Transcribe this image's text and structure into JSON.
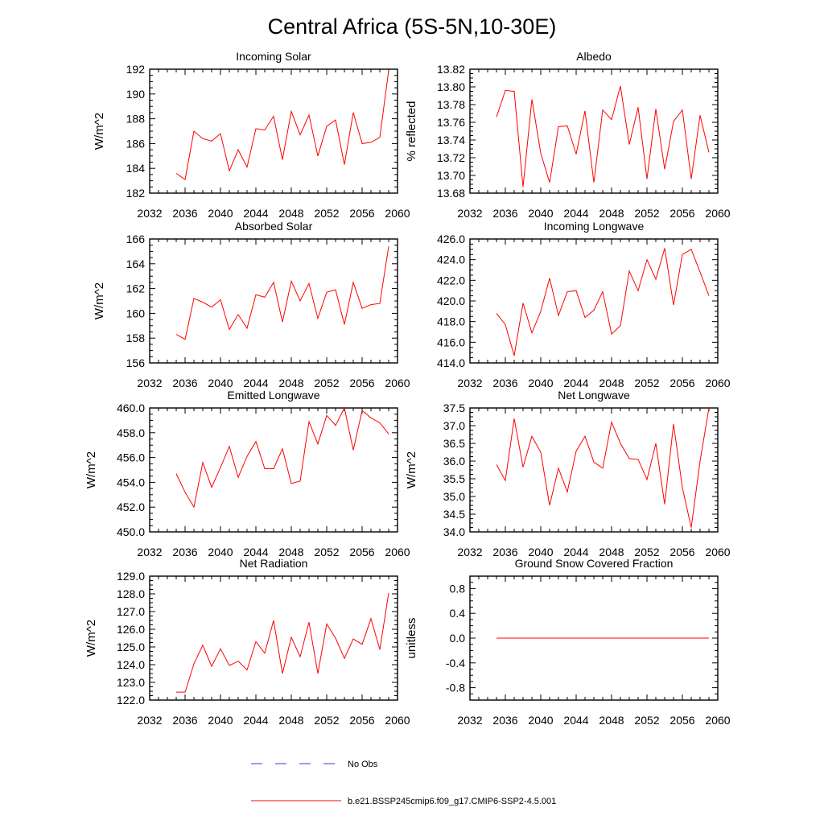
{
  "title": "Central Africa (5S-5N,10-30E)",
  "legend": {
    "obs_label": "No Obs",
    "obs_color": "#3b3bd6",
    "model_label": "b.e21.BSSP245cmip6.f09_g17.CMIP6-SSP2-4.5.001",
    "model_color": "#ff0000"
  },
  "chart_data": [
    {
      "type": "line",
      "title": "Incoming Solar",
      "ylabel": "W/m^2",
      "xlim": [
        2032,
        2060
      ],
      "xticks": [
        "2032",
        "2036",
        "2040",
        "2044",
        "2048",
        "2052",
        "2056",
        "2060"
      ],
      "ylim": [
        182,
        192
      ],
      "yticks": [
        "182",
        "184",
        "186",
        "188",
        "190",
        "192"
      ],
      "x": [
        2035,
        2036,
        2037,
        2038,
        2039,
        2040,
        2041,
        2042,
        2043,
        2044,
        2045,
        2046,
        2047,
        2048,
        2049,
        2050,
        2051,
        2052,
        2053,
        2054,
        2055,
        2056,
        2057,
        2058,
        2059
      ],
      "series": [
        {
          "values": [
            183.6,
            183.1,
            187.0,
            186.4,
            186.2,
            186.8,
            183.8,
            185.5,
            184.1,
            187.2,
            187.1,
            188.2,
            184.7,
            188.6,
            186.7,
            188.3,
            185.0,
            187.4,
            187.9,
            184.3,
            188.5,
            186.0,
            186.1,
            186.5,
            191.9
          ]
        }
      ]
    },
    {
      "type": "line",
      "title": "Albedo",
      "ylabel": "% reflected",
      "xlim": [
        2032,
        2060
      ],
      "xticks": [
        "2032",
        "2036",
        "2040",
        "2044",
        "2048",
        "2052",
        "2056",
        "2060"
      ],
      "ylim": [
        13.68,
        13.82
      ],
      "yticks": [
        "13.68",
        "13.70",
        "13.72",
        "13.74",
        "13.76",
        "13.78",
        "13.80",
        "13.82"
      ],
      "x": [
        2035,
        2036,
        2037,
        2038,
        2039,
        2040,
        2041,
        2042,
        2043,
        2044,
        2045,
        2046,
        2047,
        2048,
        2049,
        2050,
        2051,
        2052,
        2053,
        2054,
        2055,
        2056,
        2057,
        2058,
        2059
      ],
      "series": [
        {
          "values": [
            13.766,
            13.796,
            13.795,
            13.687,
            13.786,
            13.725,
            13.692,
            13.755,
            13.756,
            13.724,
            13.773,
            13.692,
            13.774,
            13.763,
            13.801,
            13.735,
            13.777,
            13.696,
            13.775,
            13.707,
            13.761,
            13.774,
            13.696,
            13.768,
            13.726
          ]
        }
      ]
    },
    {
      "type": "line",
      "title": "Absorbed Solar",
      "ylabel": "W/m^2",
      "xlim": [
        2032,
        2060
      ],
      "xticks": [
        "2032",
        "2036",
        "2040",
        "2044",
        "2048",
        "2052",
        "2056",
        "2060"
      ],
      "ylim": [
        156,
        166
      ],
      "yticks": [
        "156",
        "158",
        "160",
        "162",
        "164",
        "166"
      ],
      "x": [
        2035,
        2036,
        2037,
        2038,
        2039,
        2040,
        2041,
        2042,
        2043,
        2044,
        2045,
        2046,
        2047,
        2048,
        2049,
        2050,
        2051,
        2052,
        2053,
        2054,
        2055,
        2056,
        2057,
        2058,
        2059
      ],
      "series": [
        {
          "values": [
            158.3,
            157.9,
            161.2,
            160.9,
            160.5,
            161.1,
            158.7,
            159.9,
            158.8,
            161.5,
            161.3,
            162.5,
            159.3,
            162.6,
            161.0,
            162.4,
            159.6,
            161.7,
            161.9,
            159.1,
            162.5,
            160.4,
            160.7,
            160.8,
            165.4
          ]
        }
      ]
    },
    {
      "type": "line",
      "title": "Incoming Longwave",
      "ylabel": "",
      "xlim": [
        2032,
        2060
      ],
      "xticks": [
        "2032",
        "2036",
        "2040",
        "2044",
        "2048",
        "2052",
        "2056",
        "2060"
      ],
      "ylim": [
        414,
        426
      ],
      "yticks": [
        "414.0",
        "416.0",
        "418.0",
        "420.0",
        "422.0",
        "424.0",
        "426.0"
      ],
      "x": [
        2035,
        2036,
        2037,
        2038,
        2039,
        2040,
        2041,
        2042,
        2043,
        2044,
        2045,
        2046,
        2047,
        2048,
        2049,
        2050,
        2051,
        2052,
        2053,
        2054,
        2055,
        2056,
        2057,
        2058,
        2059
      ],
      "series": [
        {
          "values": [
            418.8,
            417.7,
            414.7,
            419.8,
            416.9,
            419.0,
            422.2,
            418.6,
            420.9,
            421.0,
            418.4,
            419.1,
            420.9,
            416.8,
            417.6,
            422.9,
            421.0,
            424.0,
            422.1,
            425.1,
            419.6,
            424.5,
            425.0,
            422.8,
            420.5
          ]
        }
      ]
    },
    {
      "type": "line",
      "title": "Emitted Longwave",
      "ylabel": "W/m^2",
      "xlim": [
        2032,
        2060
      ],
      "xticks": [
        "2032",
        "2036",
        "2040",
        "2044",
        "2048",
        "2052",
        "2056",
        "2060"
      ],
      "ylim": [
        450,
        460
      ],
      "yticks": [
        "450.0",
        "452.0",
        "454.0",
        "456.0",
        "458.0",
        "460.0"
      ],
      "x": [
        2035,
        2036,
        2037,
        2038,
        2039,
        2040,
        2041,
        2042,
        2043,
        2044,
        2045,
        2046,
        2047,
        2048,
        2049,
        2050,
        2051,
        2052,
        2053,
        2054,
        2055,
        2056,
        2057,
        2058,
        2059
      ],
      "series": [
        {
          "values": [
            454.7,
            453.2,
            452.0,
            455.6,
            453.6,
            455.2,
            456.9,
            454.4,
            456.1,
            457.3,
            455.1,
            455.1,
            456.7,
            453.9,
            454.1,
            458.9,
            457.1,
            459.4,
            458.6,
            460.0,
            456.6,
            459.8,
            459.2,
            458.8,
            457.9
          ]
        }
      ]
    },
    {
      "type": "line",
      "title": "Net Longwave",
      "ylabel": "W/m^2",
      "xlim": [
        2032,
        2060
      ],
      "xticks": [
        "2032",
        "2036",
        "2040",
        "2044",
        "2048",
        "2052",
        "2056",
        "2060"
      ],
      "ylim": [
        34.0,
        37.5
      ],
      "yticks": [
        "34.0",
        "34.5",
        "35.0",
        "35.5",
        "36.0",
        "36.5",
        "37.0",
        "37.5"
      ],
      "x": [
        2035,
        2036,
        2037,
        2038,
        2039,
        2040,
        2041,
        2042,
        2043,
        2044,
        2045,
        2046,
        2047,
        2048,
        2049,
        2050,
        2051,
        2052,
        2053,
        2054,
        2055,
        2056,
        2057,
        2058,
        2059
      ],
      "series": [
        {
          "values": [
            35.9,
            35.45,
            37.2,
            35.83,
            36.7,
            36.25,
            34.75,
            35.8,
            35.13,
            36.28,
            36.7,
            35.97,
            35.8,
            37.1,
            36.5,
            36.07,
            36.05,
            35.48,
            36.5,
            34.78,
            37.05,
            35.25,
            34.12,
            36.0,
            37.5
          ]
        }
      ]
    },
    {
      "type": "line",
      "title": "Net Radiation",
      "ylabel": "W/m^2",
      "xlim": [
        2032,
        2060
      ],
      "xticks": [
        "2032",
        "2036",
        "2040",
        "2044",
        "2048",
        "2052",
        "2056",
        "2060"
      ],
      "ylim": [
        122,
        129
      ],
      "yticks": [
        "122.0",
        "123.0",
        "124.0",
        "125.0",
        "126.0",
        "127.0",
        "128.0",
        "129.0"
      ],
      "x": [
        2035,
        2036,
        2037,
        2038,
        2039,
        2040,
        2041,
        2042,
        2043,
        2044,
        2045,
        2046,
        2047,
        2048,
        2049,
        2050,
        2051,
        2052,
        2053,
        2054,
        2055,
        2056,
        2057,
        2058,
        2059
      ],
      "series": [
        {
          "values": [
            122.45,
            122.45,
            124.05,
            125.1,
            123.9,
            124.9,
            123.95,
            124.2,
            123.7,
            125.3,
            124.65,
            126.5,
            123.5,
            125.55,
            124.45,
            126.4,
            123.5,
            126.3,
            125.5,
            124.35,
            125.45,
            125.15,
            126.6,
            124.85,
            128.05
          ]
        }
      ]
    },
    {
      "type": "line",
      "title": "Ground Snow Covered Fraction",
      "ylabel": "unitless",
      "xlim": [
        2032,
        2060
      ],
      "xticks": [
        "2032",
        "2036",
        "2040",
        "2044",
        "2048",
        "2052",
        "2056",
        "2060"
      ],
      "ylim": [
        -1.0,
        1.0
      ],
      "yticks": [
        "-0.8",
        "-0.4",
        "0.0",
        "0.4",
        "0.8"
      ],
      "x": [
        2035,
        2036,
        2037,
        2038,
        2039,
        2040,
        2041,
        2042,
        2043,
        2044,
        2045,
        2046,
        2047,
        2048,
        2049,
        2050,
        2051,
        2052,
        2053,
        2054,
        2055,
        2056,
        2057,
        2058,
        2059
      ],
      "series": [
        {
          "values": [
            0,
            0,
            0,
            0,
            0,
            0,
            0,
            0,
            0,
            0,
            0,
            0,
            0,
            0,
            0,
            0,
            0,
            0,
            0,
            0,
            0,
            0,
            0,
            0,
            0
          ]
        }
      ]
    }
  ]
}
